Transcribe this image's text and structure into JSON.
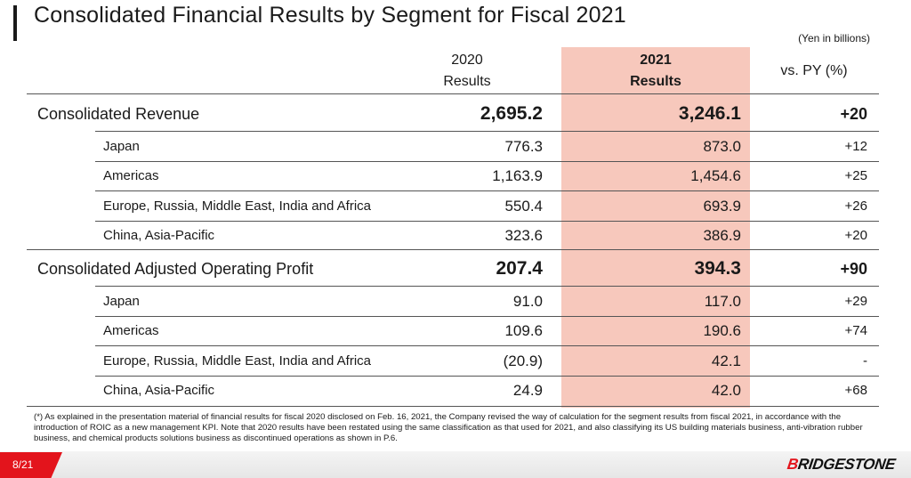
{
  "title": "Consolidated Financial Results by Segment for Fiscal 2021",
  "unit_note": "(Yen in billions)",
  "headers": {
    "col2020_line1": "2020",
    "col2020_line2": "Results",
    "col2021_line1": "2021",
    "col2021_line2": "Results",
    "vs_py": "vs. PY (%)"
  },
  "rows": [
    {
      "type": "main",
      "label": "Consolidated Revenue",
      "v2020": "2,695.2",
      "v2021": "3,246.1",
      "vpy": "+20"
    },
    {
      "type": "sub",
      "label": "Japan",
      "v2020": "776.3",
      "v2021": "873.0",
      "vpy": "+12"
    },
    {
      "type": "sub",
      "label": "Americas",
      "v2020": "1,163.9",
      "v2021": "1,454.6",
      "vpy": "+25"
    },
    {
      "type": "sub",
      "label": "Europe, Russia, Middle East, India and Africa",
      "v2020": "550.4",
      "v2021": "693.9",
      "vpy": "+26"
    },
    {
      "type": "sub",
      "label": "China, Asia-Pacific",
      "v2020": "323.6",
      "v2021": "386.9",
      "vpy": "+20"
    },
    {
      "type": "main",
      "label": "Consolidated Adjusted Operating Profit",
      "v2020": "207.4",
      "v2021": "394.3",
      "vpy": "+90"
    },
    {
      "type": "sub",
      "label": "Japan",
      "v2020": "91.0",
      "v2021": "117.0",
      "vpy": "+29"
    },
    {
      "type": "sub",
      "label": "Americas",
      "v2020": "109.6",
      "v2021": "190.6",
      "vpy": "+74"
    },
    {
      "type": "sub",
      "label": "Europe, Russia, Middle East, India and Africa",
      "v2020": "(20.9)",
      "v2021": "42.1",
      "vpy": "-"
    },
    {
      "type": "sub",
      "label": "China, Asia-Pacific",
      "v2020": "24.9",
      "v2021": "42.0",
      "vpy": "+68"
    }
  ],
  "footnote": "(*) As explained in the presentation material of financial results for fiscal 2020 disclosed on Feb. 16, 2021, the Company revised the way of calculation for the segment results from fiscal 2021, in accordance with the introduction of ROIC as a new management KPI. Note that 2020 results have been restated using the same classification as that used for 2021, and also classifying its US building materials business, anti-vibration rubber business, and chemical products solutions business as discontinued operations as shown in P.6.",
  "page_number": "8/21",
  "logo_text": "BRIDGESTONE",
  "colors": {
    "accent": "#e3141c",
    "highlight": "#f7c8bc"
  }
}
